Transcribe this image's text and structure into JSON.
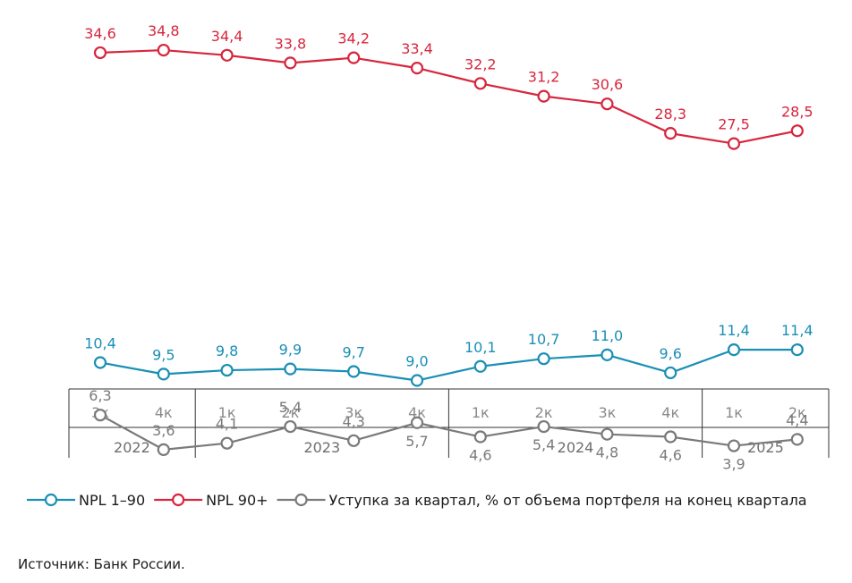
{
  "chart_data": {
    "type": "line",
    "categories": [
      "3к",
      "4к",
      "1к",
      "2к",
      "3к",
      "4к",
      "1к",
      "2к",
      "3к",
      "4к",
      "1к",
      "2к"
    ],
    "years": [
      {
        "label": "2022",
        "span": 2
      },
      {
        "label": "2023",
        "span": 4
      },
      {
        "label": "2024",
        "span": 4
      },
      {
        "label": "2025",
        "span": 2
      }
    ],
    "series": [
      {
        "key": "npl90",
        "name": "NPL 90+",
        "color": "#d7263d",
        "values": [
          34.6,
          34.8,
          34.4,
          33.8,
          34.2,
          33.4,
          32.2,
          31.2,
          30.6,
          28.3,
          27.5,
          28.5
        ],
        "labels": [
          "34,6",
          "34,8",
          "34,4",
          "33,8",
          "34,2",
          "33,4",
          "32,2",
          "31,2",
          "30,6",
          "28,3",
          "27,5",
          "28,5"
        ],
        "label_position": [
          "above",
          "above",
          "above",
          "above",
          "above",
          "above",
          "above",
          "above",
          "above",
          "above",
          "above",
          "above"
        ]
      },
      {
        "key": "npl190",
        "name": "NPL 1–90",
        "color": "#1a8fb5",
        "values": [
          10.4,
          9.5,
          9.8,
          9.9,
          9.7,
          9.0,
          10.1,
          10.7,
          11.0,
          9.6,
          11.4,
          11.4
        ],
        "labels": [
          "10,4",
          "9,5",
          "9,8",
          "9,9",
          "9,7",
          "9,0",
          "10,1",
          "10,7",
          "11,0",
          "9,6",
          "11,4",
          "11,4"
        ],
        "label_position": [
          "above",
          "above",
          "above",
          "above",
          "above",
          "above",
          "above",
          "above",
          "above",
          "above",
          "above",
          "above"
        ]
      },
      {
        "key": "cession",
        "name": "Уступка за квартал, % от объема портфеля на конец квартала",
        "color": "#7a7a7a",
        "values": [
          6.3,
          3.6,
          4.1,
          5.4,
          4.3,
          5.7,
          4.6,
          5.4,
          4.8,
          4.6,
          3.9,
          4.4
        ],
        "labels": [
          "6,3",
          "3,6",
          "4,1",
          "5,4",
          "4,3",
          "5,7",
          "4,6",
          "5,4",
          "4,8",
          "4,6",
          "3,9",
          "4,4"
        ],
        "label_position": [
          "above",
          "above",
          "above",
          "above",
          "above",
          "below",
          "below",
          "below",
          "below",
          "below",
          "below",
          "above"
        ]
      }
    ],
    "legend_order": [
      "npl190",
      "npl90",
      "cession"
    ],
    "legend_position": "bottom-left"
  },
  "source": "Источник: Банк России."
}
